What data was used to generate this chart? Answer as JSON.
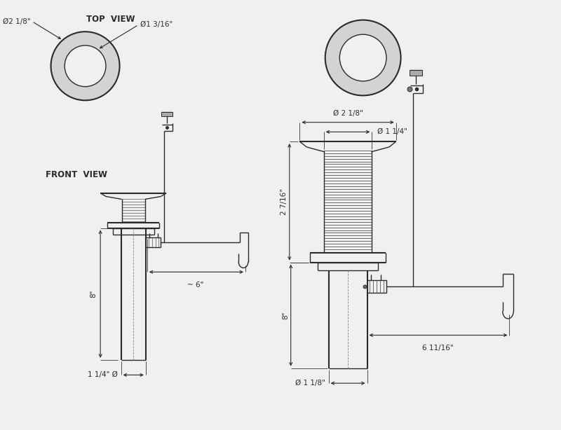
{
  "bg_color": "#f0f0ee",
  "line_color": "#2a2a2a",
  "dim_outer": "Ø2 1/8\"",
  "dim_inner": "Ø1 3/16\"",
  "dim_2_1_8": "Ø 2 1/8\"",
  "dim_1_1_4_top": "Ø 1 1/4\"",
  "dim_2_7_16": "2 7/16\"",
  "dim_8_right": "8\"",
  "dim_8_left": "8\"",
  "dim_6_11_16": "6 11/16\"",
  "dim_1_1_8": "Ø 1 1/8\"",
  "dim_6": "~ 6\"",
  "dim_1_1_4_bot": "1 1/4\" Ø",
  "title_top_view": "TOP  VIEW",
  "title_front_view": "FRONT  VIEW",
  "font_label": 7.5,
  "font_title": 8.5,
  "thread_color": "#555555",
  "dim_line_color": "#333333"
}
